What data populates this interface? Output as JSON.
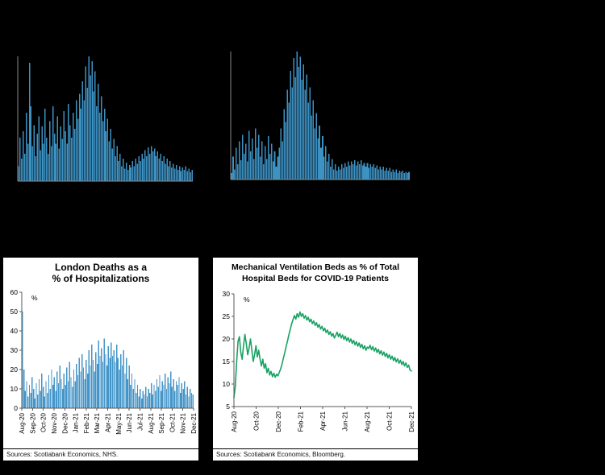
{
  "page": {
    "background": "#000000"
  },
  "chart_data": [
    {
      "name": "top-left-daily-series",
      "type": "bar",
      "title": "",
      "color": "#3d92c4",
      "axis_color": "#8a8a8a",
      "ylim": [
        0,
        100
      ],
      "grid": false,
      "values": [
        12,
        35,
        18,
        40,
        22,
        55,
        30,
        95,
        60,
        28,
        45,
        20,
        38,
        52,
        25,
        44,
        30,
        58,
        35,
        22,
        48,
        28,
        60,
        38,
        30,
        52,
        26,
        44,
        34,
        56,
        40,
        30,
        62,
        45,
        35,
        55,
        42,
        65,
        50,
        70,
        58,
        80,
        65,
        92,
        75,
        100,
        85,
        96,
        72,
        88,
        60,
        78,
        55,
        68,
        48,
        58,
        40,
        50,
        32,
        42,
        26,
        34,
        20,
        28,
        16,
        22,
        12,
        18,
        10,
        15,
        9,
        13,
        11,
        16,
        12,
        18,
        14,
        20,
        16,
        22,
        18,
        25,
        20,
        27,
        22,
        28,
        24,
        26,
        20,
        24,
        18,
        22,
        16,
        20,
        14,
        18,
        12,
        16,
        11,
        14,
        10,
        13,
        9,
        12,
        8,
        11,
        9,
        12,
        8,
        10,
        7,
        9
      ]
    },
    {
      "name": "top-right-daily-series",
      "type": "bar",
      "title": "",
      "color": "#3d92c4",
      "axis_color": "#8a8a8a",
      "ylim": [
        0,
        100
      ],
      "grid": false,
      "values": [
        5,
        18,
        8,
        25,
        12,
        30,
        15,
        35,
        20,
        28,
        14,
        38,
        22,
        32,
        16,
        40,
        25,
        35,
        18,
        30,
        12,
        26,
        16,
        34,
        20,
        28,
        14,
        22,
        10,
        18,
        25,
        40,
        30,
        55,
        45,
        70,
        60,
        85,
        72,
        95,
        80,
        100,
        88,
        96,
        78,
        90,
        70,
        82,
        60,
        72,
        50,
        62,
        40,
        52,
        32,
        42,
        25,
        34,
        18,
        26,
        14,
        20,
        10,
        16,
        8,
        12,
        7,
        10,
        8,
        12,
        9,
        13,
        10,
        14,
        11,
        14,
        12,
        15,
        11,
        14,
        12,
        15,
        11,
        13,
        10,
        13,
        9,
        12,
        10,
        12,
        9,
        11,
        8,
        10,
        8,
        10,
        7,
        9,
        7,
        9,
        6,
        8,
        6,
        8,
        5,
        7,
        6,
        7,
        5,
        6,
        5,
        6
      ]
    },
    {
      "name": "london-deaths-pct-of-hospitalizations",
      "type": "bar",
      "title_lines": [
        "London Deaths as a",
        "% of Hospitalizations"
      ],
      "unit_label": "%",
      "color": "#4596c8",
      "axis_color": "#595959",
      "ylim": [
        0,
        60
      ],
      "yticks": [
        0,
        10,
        20,
        30,
        40,
        50,
        60
      ],
      "xticks": [
        "Aug-20",
        "Sep-20",
        "Oct-20",
        "Nov-20",
        "Dec-20",
        "Jan-21",
        "Feb-21",
        "Mar-21",
        "Apr-21",
        "May-21",
        "Jun-21",
        "Jul-21",
        "Aug-21",
        "Sep-21",
        "Oct-21",
        "Nov-21",
        "Dec-21"
      ],
      "grid": false,
      "legend": "none",
      "values": [
        50,
        20,
        9,
        14,
        6,
        12,
        8,
        16,
        10,
        5,
        13,
        7,
        15,
        9,
        18,
        11,
        6,
        14,
        8,
        17,
        10,
        20,
        12,
        16,
        9,
        19,
        13,
        22,
        15,
        10,
        18,
        12,
        21,
        14,
        24,
        16,
        11,
        20,
        14,
        23,
        17,
        26,
        19,
        28,
        21,
        15,
        25,
        18,
        30,
        22,
        33,
        25,
        19,
        29,
        23,
        35,
        27,
        31,
        24,
        36,
        28,
        22,
        32,
        26,
        34,
        27,
        30,
        24,
        33,
        26,
        20,
        28,
        22,
        30,
        18,
        26,
        15,
        22,
        12,
        18,
        10,
        15,
        8,
        12,
        6,
        10,
        5,
        9,
        7,
        11,
        6,
        10,
        8,
        13,
        7,
        12,
        9,
        15,
        11,
        17,
        9,
        14,
        12,
        18,
        10,
        16,
        13,
        19,
        11,
        15,
        9,
        14,
        12,
        16,
        8,
        13,
        10,
        14,
        7,
        11,
        6,
        10,
        8,
        7
      ],
      "source": "Sources: Scotiabank Economics, NHS."
    },
    {
      "name": "mechanical-ventilation-beds-pct",
      "type": "line",
      "title_lines": [
        "Mechanical Ventilation Beds as % of Total",
        "Hospital Beds for COVID-19 Patients"
      ],
      "unit_label": "%",
      "color": "#18a263",
      "axis_color": "#595959",
      "ylim": [
        5,
        30
      ],
      "yticks": [
        5,
        10,
        15,
        20,
        25,
        30
      ],
      "xticks": [
        "Aug-20",
        "Oct-20",
        "Dec-20",
        "Feb-21",
        "Apr-21",
        "Jun-21",
        "Aug-21",
        "Oct-21",
        "Dec-21"
      ],
      "grid": false,
      "legend": "none",
      "values": [
        7,
        9.5,
        15,
        19.5,
        20.5,
        17,
        15.5,
        18.5,
        21,
        19,
        16.5,
        18,
        20,
        17.5,
        15,
        16.5,
        18.5,
        16,
        17.5,
        15.5,
        14,
        15.5,
        13.5,
        14.5,
        12.5,
        13.5,
        12,
        12.8,
        11.6,
        12.4,
        11.5,
        12.2,
        11.8,
        12.6,
        13.4,
        14.5,
        15.8,
        17,
        18.4,
        19.6,
        21,
        22.2,
        23.4,
        24.3,
        25.2,
        24.4,
        25.6,
        24.8,
        26,
        25,
        25.6,
        24.6,
        25.2,
        24.2,
        24.8,
        23.8,
        24.4,
        23.4,
        24,
        23,
        23.6,
        22.6,
        23.2,
        22.2,
        22.8,
        21.8,
        22.4,
        21.4,
        22,
        21,
        21.6,
        20.6,
        21.2,
        20.2,
        20.8,
        21.5,
        20.5,
        21.2,
        20.2,
        20.9,
        19.9,
        20.6,
        19.6,
        20.3,
        19.3,
        20,
        19,
        19.7,
        18.7,
        19.4,
        18.4,
        19.1,
        18.1,
        18.8,
        17.8,
        18.5,
        17.5,
        18.2,
        17.9,
        18.6,
        17.6,
        18.3,
        17.3,
        18,
        17,
        17.7,
        16.7,
        17.4,
        16.4,
        17.1,
        16.1,
        16.8,
        15.8,
        16.5,
        15.5,
        16.2,
        15.2,
        15.9,
        14.9,
        15.6,
        14.6,
        15.3,
        14.3,
        15,
        14,
        14.7,
        13.7,
        14.2,
        13.1,
        12.9
      ],
      "source": "Sources: Scotiabank Economics, Bloomberg."
    }
  ]
}
